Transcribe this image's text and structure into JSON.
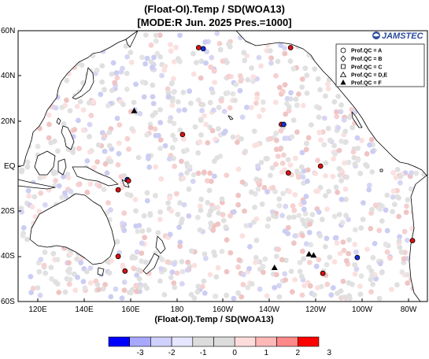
{
  "title": {
    "line1": "(Float-OI).Temp / SD(WOA13)",
    "line2": "[MODE:R Jun. 2025  Pres.=1000]"
  },
  "map": {
    "lat_labels": [
      "60N",
      "40N",
      "20N",
      "EQ",
      "20S",
      "40S",
      "60S"
    ],
    "lon_labels": [
      "120E",
      "140E",
      "160E",
      "180",
      "160W",
      "140W",
      "120W",
      "100W",
      "80W"
    ],
    "xlabel": "(Float-OI).Temp / SD(WOA13)",
    "land_color": "#ffffff",
    "coast_color": "#000000",
    "neutral_float_color": "#e0e0e0"
  },
  "logo": {
    "text": "JAMSTEC"
  },
  "legend": {
    "items": [
      {
        "label": "Prof.QC = A",
        "symbol": "circle-open"
      },
      {
        "label": "Prof.QC = B",
        "symbol": "diamond-open"
      },
      {
        "label": "Prof.QC = C",
        "symbol": "square-open"
      },
      {
        "label": "Prof.QC = D,E",
        "symbol": "triangle-open"
      },
      {
        "label": "Prof.QC = F",
        "symbol": "triangle-filled"
      }
    ]
  },
  "colorbar": {
    "tick_labels": [
      "-3",
      "-2",
      "-1",
      "0",
      "1",
      "2",
      "3"
    ],
    "colors": [
      "#0000ff",
      "#a8a8ff",
      "#d0d0ff",
      "#e6e6ff",
      "#dcdcdc",
      "#dcdcdc",
      "#ffdcdc",
      "#ffb8b8",
      "#ff8888",
      "#ff0000"
    ]
  },
  "flagged_floats": [
    {
      "lon": 190,
      "lat": 52.5,
      "symbol": "circle",
      "color": "red"
    },
    {
      "lon": 192,
      "lat": 52,
      "symbol": "circle",
      "color": "blue"
    },
    {
      "lon": 230,
      "lat": 52.5,
      "symbol": "circle",
      "color": "red"
    },
    {
      "lon": 226,
      "lat": 18.5,
      "symbol": "circle",
      "color": "red"
    },
    {
      "lon": 227,
      "lat": 18.5,
      "symbol": "circle",
      "color": "blue"
    },
    {
      "lon": 243,
      "lat": 0,
      "symbol": "circle",
      "color": "red"
    },
    {
      "lon": 229,
      "lat": -3,
      "symbol": "circle",
      "color": "red"
    },
    {
      "lon": 183,
      "lat": 14,
      "symbol": "circle",
      "color": "red"
    },
    {
      "lon": 159,
      "lat": -6,
      "symbol": "circle",
      "color": "blue"
    },
    {
      "lon": 159.5,
      "lat": -6.5,
      "symbol": "circle",
      "color": "red"
    },
    {
      "lon": 155,
      "lat": -10.5,
      "symbol": "circle",
      "color": "red"
    },
    {
      "lon": 155,
      "lat": -40,
      "symbol": "circle",
      "color": "red"
    },
    {
      "lon": 158,
      "lat": -46.5,
      "symbol": "circle",
      "color": "red"
    },
    {
      "lon": 259,
      "lat": -40.5,
      "symbol": "circle",
      "color": "blue"
    },
    {
      "lon": 244,
      "lat": -47.5,
      "symbol": "circle",
      "color": "red"
    },
    {
      "lon": 283,
      "lat": -33,
      "symbol": "circle",
      "color": "red"
    },
    {
      "lon": 162,
      "lat": 24.5,
      "symbol": "triangle",
      "color": "black"
    },
    {
      "lon": 223,
      "lat": -45,
      "symbol": "triangle",
      "color": "black"
    },
    {
      "lon": 238,
      "lat": -39,
      "symbol": "triangle",
      "color": "black"
    },
    {
      "lon": 240,
      "lat": -39.5,
      "symbol": "triangle",
      "color": "black"
    }
  ]
}
